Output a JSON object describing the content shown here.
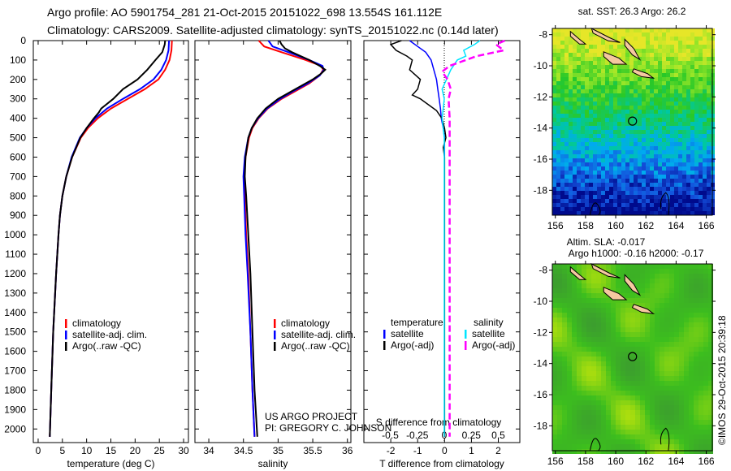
{
  "header": {
    "line1": "Argo profile: AO 5901754_281 21-Oct-2015 20151022_698 13.554S 161.112E",
    "line2": "Climatology: CARS2009. Satellite-adjusted climatology: synTS_20151022.nc (0.14d later)"
  },
  "credits": {
    "project": "US ARGO PROJECT",
    "pi": "PI: GREGORY C. JOHNSON",
    "imos": "©IMOS 29-Oct-2015 20:39:18"
  },
  "colors": {
    "climatology": "#ff0000",
    "satellite": "#0000ff",
    "argo": "#000000",
    "sal_satellite": "#00e5ff",
    "sal_argo": "#ff00ff"
  },
  "chart_data": [
    {
      "type": "line",
      "xlabel": "temperature (deg C)",
      "ylabel": "depth",
      "xlim": [
        -1,
        31
      ],
      "ylim": [
        2070,
        0
      ],
      "xticks": [
        0,
        5,
        10,
        15,
        20,
        25,
        30
      ],
      "xtick_labels": [
        "0",
        "5",
        "10",
        "15",
        "20",
        "25",
        "30"
      ],
      "yticks": [
        0,
        100,
        200,
        300,
        400,
        500,
        600,
        700,
        800,
        900,
        1000,
        1100,
        1200,
        1300,
        1400,
        1500,
        1600,
        1700,
        1800,
        1900,
        2000
      ],
      "legend": [
        "climatology",
        "satellite-adj. clim.",
        "Argo(..raw -QC)"
      ],
      "series": [
        {
          "name": "climatology",
          "color": "#ff0000",
          "depth": [
            0,
            50,
            100,
            150,
            200,
            250,
            300,
            350,
            400,
            450,
            500,
            600,
            700,
            800,
            900,
            1000,
            1200,
            1500,
            1800,
            2040
          ],
          "values": [
            27.6,
            27.5,
            27.1,
            26.2,
            24.8,
            22,
            18.5,
            15,
            12.3,
            10.3,
            8.8,
            7,
            5.8,
            5,
            4.5,
            4.2,
            3.7,
            3.1,
            2.7,
            2.4
          ]
        },
        {
          "name": "satellite-adj. clim.",
          "color": "#0000ff",
          "depth": [
            0,
            50,
            100,
            150,
            200,
            250,
            300,
            350,
            400,
            450,
            500,
            600,
            700,
            800,
            900,
            1000,
            1200,
            1500,
            1800,
            2040
          ],
          "values": [
            27.0,
            26.9,
            26.4,
            25.4,
            23.8,
            21,
            17.5,
            14.2,
            11.8,
            10,
            8.6,
            6.9,
            5.8,
            5,
            4.5,
            4.2,
            3.7,
            3.1,
            2.7,
            2.4
          ]
        },
        {
          "name": "Argo(..raw -QC)",
          "color": "#000000",
          "depth": [
            0,
            20,
            60,
            100,
            150,
            200,
            250,
            300,
            350,
            370,
            400,
            450,
            500,
            600,
            700,
            800,
            900,
            1000,
            1200,
            1500,
            1800,
            2040
          ],
          "values": [
            26.2,
            26.1,
            25.6,
            24.2,
            22.5,
            20.5,
            17.5,
            15.5,
            13,
            12.5,
            11.5,
            10,
            8.7,
            7,
            5.8,
            5,
            4.5,
            4.2,
            3.7,
            3.1,
            2.7,
            2.4
          ]
        }
      ]
    },
    {
      "type": "line",
      "xlabel": "salinity",
      "xlim": [
        33.8,
        36.05
      ],
      "ylim": [
        2070,
        0
      ],
      "xticks": [
        34,
        34.5,
        35,
        35.5,
        36
      ],
      "xtick_labels": [
        "34",
        "34.5",
        "35",
        "35.5",
        "36"
      ],
      "legend": [
        "climatology",
        "satellite-adj. clim.",
        "Argo(..raw -QC)"
      ],
      "series": [
        {
          "name": "climatology",
          "color": "#ff0000",
          "depth": [
            0,
            30,
            60,
            100,
            130,
            150,
            180,
            220,
            260,
            300,
            350,
            400,
            450,
            500,
            600,
            700,
            800,
            1000,
            1200,
            1500,
            1800,
            2040
          ],
          "values": [
            34.72,
            34.8,
            35.05,
            35.4,
            35.62,
            35.65,
            35.6,
            35.45,
            35.25,
            35.05,
            34.85,
            34.72,
            34.63,
            34.58,
            34.53,
            34.51,
            34.52,
            34.54,
            34.57,
            34.6,
            34.63,
            34.66
          ]
        },
        {
          "name": "satellite-adj. clim.",
          "color": "#0000ff",
          "depth": [
            0,
            30,
            60,
            100,
            130,
            150,
            180,
            220,
            260,
            300,
            350,
            400,
            450,
            500,
            600,
            700,
            800,
            1000,
            1200,
            1500,
            1800,
            2040
          ],
          "values": [
            34.86,
            34.92,
            35.15,
            35.45,
            35.64,
            35.66,
            35.6,
            35.43,
            35.22,
            35.03,
            34.84,
            34.71,
            34.62,
            34.57,
            34.52,
            34.5,
            34.51,
            34.53,
            34.56,
            34.6,
            34.63,
            34.66
          ]
        },
        {
          "name": "Argo(..raw -QC)",
          "color": "#000000",
          "depth": [
            0,
            20,
            40,
            60,
            100,
            130,
            150,
            170,
            200,
            250,
            300,
            350,
            400,
            450,
            500,
            600,
            700,
            800,
            1000,
            1200,
            1500,
            1800,
            2040
          ],
          "values": [
            35.02,
            35.05,
            35.1,
            35.2,
            35.45,
            35.6,
            35.68,
            35.62,
            35.5,
            35.25,
            35.0,
            34.82,
            34.7,
            34.62,
            34.57,
            34.53,
            34.52,
            34.54,
            34.57,
            34.6,
            34.63,
            34.66,
            34.7
          ]
        }
      ]
    },
    {
      "type": "line",
      "xlabel": "T difference from climatology",
      "xlabel2": "S difference from climatology",
      "xlim": [
        -3,
        2.8
      ],
      "ylim": [
        2070,
        0
      ],
      "xticks": [
        -2,
        -1,
        0,
        1,
        2
      ],
      "xtick_labels": [
        "-2",
        "-1",
        "0",
        "1",
        "2"
      ],
      "xticks2": [
        -0.5,
        -0.25,
        0,
        0.25,
        0.5
      ],
      "xtick2_labels": [
        "-0.5",
        "-0.25",
        "0",
        "0.25",
        "0.5"
      ],
      "legend_temperature": {
        "heading": "temperature",
        "items": [
          "satellite",
          "Argo(-adj)"
        ]
      },
      "legend_salinity": {
        "heading": "salinity",
        "items": [
          "satellite",
          "Argo(-adj)"
        ]
      },
      "series": [
        {
          "name": "T satellite",
          "axis": "T",
          "color": "#0000ff",
          "depth": [
            0,
            30,
            60,
            100,
            150,
            200,
            250,
            300,
            350,
            400,
            450,
            500,
            600,
            800,
            1000,
            1500,
            2040
          ],
          "values": [
            -1.3,
            -1.0,
            -0.7,
            -0.5,
            -0.4,
            -0.3,
            -0.25,
            -0.2,
            -0.15,
            -0.12,
            -0.05,
            0,
            0,
            0,
            0,
            0,
            0
          ]
        },
        {
          "name": "T Argo(-adj)",
          "axis": "T",
          "color": "#000000",
          "depth": [
            0,
            20,
            50,
            80,
            100,
            150,
            200,
            250,
            280,
            300,
            330,
            360,
            400,
            450,
            500,
            550,
            600,
            700,
            800,
            1000,
            1500,
            2040
          ],
          "values": [
            -1.6,
            -2.0,
            -1.8,
            -1.4,
            -1.2,
            -1.3,
            -0.9,
            -1.0,
            -1.2,
            -0.9,
            -0.6,
            -0.3,
            -0.1,
            0,
            0.05,
            -0.05,
            0,
            0,
            0,
            0,
            0,
            0
          ]
        },
        {
          "name": "S satellite",
          "axis": "S",
          "color": "#00e5ff",
          "depth": [
            0,
            20,
            50,
            80,
            100,
            150,
            200,
            250,
            300,
            400,
            500,
            600,
            800,
            1000,
            1500,
            2040
          ],
          "values": [
            0.33,
            0.28,
            0.18,
            0.2,
            0.12,
            0.06,
            0.02,
            -0.02,
            0,
            -0.02,
            0,
            0,
            0,
            0,
            0,
            0
          ]
        },
        {
          "name": "S Argo(-adj)",
          "axis": "S",
          "color": "#ff00ff",
          "depth": [
            0,
            20,
            50,
            80,
            100,
            130,
            160,
            200,
            250,
            300,
            400,
            500,
            800,
            1000,
            1500,
            2040
          ],
          "values": [
            0.56,
            0.48,
            0.55,
            0.3,
            0.2,
            0.05,
            -0.02,
            0.03,
            0.06,
            0.04,
            0.05,
            0.05,
            0.05,
            0.05,
            0.05,
            0.05
          ]
        }
      ]
    },
    {
      "type": "heatmap",
      "title": "sat. SST: 26.3 Argo: 26.2",
      "xlim": [
        155.8,
        166.4
      ],
      "ylim": [
        -7.6,
        -19.6
      ],
      "xticks": [
        156,
        158,
        160,
        162,
        164,
        166
      ],
      "xtick_labels": [
        "156",
        "158",
        "160",
        "162",
        "164",
        "166"
      ],
      "yticks": [
        -8,
        -10,
        -12,
        -14,
        -16,
        -18
      ],
      "ytick_labels": [
        "-8",
        "-10",
        "-12",
        "-14",
        "-16",
        "-18"
      ],
      "argo_position": {
        "lon": 161.112,
        "lat": -13.554
      }
    },
    {
      "type": "heatmap",
      "title": "Altim. SLA: -0.017",
      "subtitle": "Argo h1000: -0.16 h2000: -0.17",
      "xlim": [
        155.8,
        166.4
      ],
      "ylim": [
        -7.6,
        -19.6
      ],
      "xticks": [
        156,
        158,
        160,
        162,
        164,
        166
      ],
      "xtick_labels": [
        "156",
        "158",
        "160",
        "162",
        "164",
        "166"
      ],
      "yticks": [
        -8,
        -10,
        -12,
        -14,
        -16,
        -18
      ],
      "ytick_labels": [
        "-8",
        "-10",
        "-12",
        "-14",
        "-16",
        "-18"
      ],
      "argo_position": {
        "lon": 161.112,
        "lat": -13.554
      }
    }
  ]
}
